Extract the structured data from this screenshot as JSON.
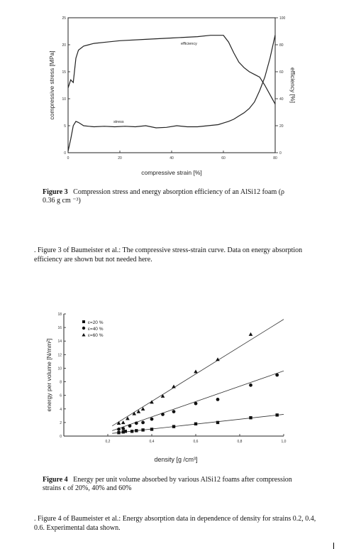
{
  "figure3": {
    "caption_label": "Figure 3",
    "caption_text": "Compression stress and energy absorption efficiency of an AlSi12 foam (ρ  0.36 g cm ⁻³)",
    "chart_data": {
      "type": "line",
      "xlabel": "compressive strain  [%]",
      "ylabel_left": "compressive stress  [MPa]",
      "ylabel_right": "efficiency  [%]",
      "xlim": [
        0,
        80
      ],
      "x_ticks": [
        "0",
        "20",
        "40",
        "60",
        "80"
      ],
      "ylim_left": [
        0,
        25
      ],
      "y_ticks_left": [
        "0",
        "5",
        "10",
        "15",
        "20",
        "25"
      ],
      "ylim_right": [
        0,
        100
      ],
      "y_ticks_right": [
        "0",
        "20",
        "40",
        "60",
        "80",
        "100"
      ],
      "series": [
        {
          "name": "stress",
          "axis": "left",
          "x": [
            0,
            1,
            2,
            3,
            4,
            6,
            8,
            10,
            14,
            18,
            22,
            26,
            30,
            34,
            38,
            42,
            46,
            50,
            54,
            58,
            60,
            62,
            64,
            66,
            68,
            70,
            72,
            74,
            76,
            78,
            80
          ],
          "y": [
            0.3,
            2.5,
            5.0,
            5.8,
            5.6,
            5.0,
            4.9,
            4.8,
            4.9,
            4.8,
            4.9,
            4.8,
            5.0,
            4.6,
            4.7,
            5.0,
            4.8,
            4.8,
            5.0,
            5.2,
            5.5,
            5.8,
            6.2,
            6.8,
            7.4,
            8.2,
            9.4,
            11.5,
            14.0,
            17.5,
            21.8
          ]
        },
        {
          "name": "efficiency",
          "axis": "right",
          "x": [
            0,
            1,
            2,
            3,
            4,
            6,
            8,
            10,
            15,
            20,
            30,
            40,
            50,
            55,
            58,
            60,
            62,
            64,
            66,
            68,
            70,
            72,
            74,
            76,
            78,
            80
          ],
          "y": [
            48,
            54,
            52,
            70,
            76,
            79,
            80,
            81,
            82,
            83,
            84,
            85,
            86,
            87,
            87,
            87,
            82,
            74,
            67,
            63,
            60,
            58,
            56,
            50,
            43,
            36
          ]
        }
      ],
      "annotations": [
        "efficiency",
        "stress"
      ]
    }
  },
  "note3": {
    "text": ". Figure 3 of Baumeister et al.: The compressive stress-strain curve. Data on energy absorption efficiency are shown but not needed here."
  },
  "figure4": {
    "caption_label": "Figure 4",
    "caption_text": "Energy per unit volume absorbed by various AlSi12 foams after compression strains ϵ of 20%, 40% and 60%",
    "chart_data": {
      "type": "scatter",
      "xlabel": "density  [g /cm³]",
      "ylabel": "energy per volume [N/mm²]",
      "xlim": [
        0,
        1.0
      ],
      "x_ticks": [
        "0,2",
        "0,4",
        "0,6",
        "0,8",
        "1,0"
      ],
      "ylim": [
        0,
        18
      ],
      "y_ticks": [
        "0",
        "2",
        "4",
        "6",
        "8",
        "10",
        "12",
        "14",
        "16",
        "18"
      ],
      "legend": [
        "ε=20 %",
        "ε=40 %",
        "ε=60 %"
      ],
      "legend_position": "top-left",
      "series": [
        {
          "name": "ε=20 %",
          "marker": "square",
          "x": [
            0.25,
            0.27,
            0.28,
            0.31,
            0.33,
            0.36,
            0.4,
            0.5,
            0.6,
            0.7,
            0.85,
            0.97
          ],
          "y": [
            0.5,
            0.6,
            0.7,
            0.7,
            0.8,
            0.9,
            1.0,
            1.4,
            1.8,
            2.0,
            2.7,
            3.1
          ]
        },
        {
          "name": "ε=40 %",
          "marker": "circle",
          "x": [
            0.25,
            0.27,
            0.3,
            0.33,
            0.36,
            0.4,
            0.45,
            0.5,
            0.6,
            0.7,
            0.85,
            0.97
          ],
          "y": [
            1.0,
            1.1,
            1.5,
            1.9,
            2.0,
            2.5,
            3.2,
            3.6,
            4.8,
            5.4,
            7.5,
            9.0
          ]
        },
        {
          "name": "ε=60 %",
          "marker": "triangle",
          "x": [
            0.25,
            0.27,
            0.29,
            0.32,
            0.34,
            0.36,
            0.4,
            0.45,
            0.5,
            0.6,
            0.7,
            0.85
          ],
          "y": [
            1.9,
            2.0,
            2.6,
            3.3,
            3.6,
            4.0,
            5.0,
            5.9,
            7.3,
            9.5,
            11.3,
            15.0
          ]
        }
      ],
      "fit_lines": [
        {
          "name": "ε=20 %",
          "x": [
            0.22,
            1.0
          ],
          "y": [
            0.4,
            3.2
          ]
        },
        {
          "name": "ε=40 %",
          "x": [
            0.22,
            1.0
          ],
          "y": [
            0.8,
            9.6
          ]
        },
        {
          "name": "ε=60 %",
          "x": [
            0.22,
            1.0
          ],
          "y": [
            1.5,
            17.2
          ]
        }
      ]
    }
  },
  "note4": {
    "text": ". Figure 4 of Baumeister et al.: Energy absorption data in dependence of density for strains 0.2, 0.4, 0.6. Experimental data shown."
  }
}
